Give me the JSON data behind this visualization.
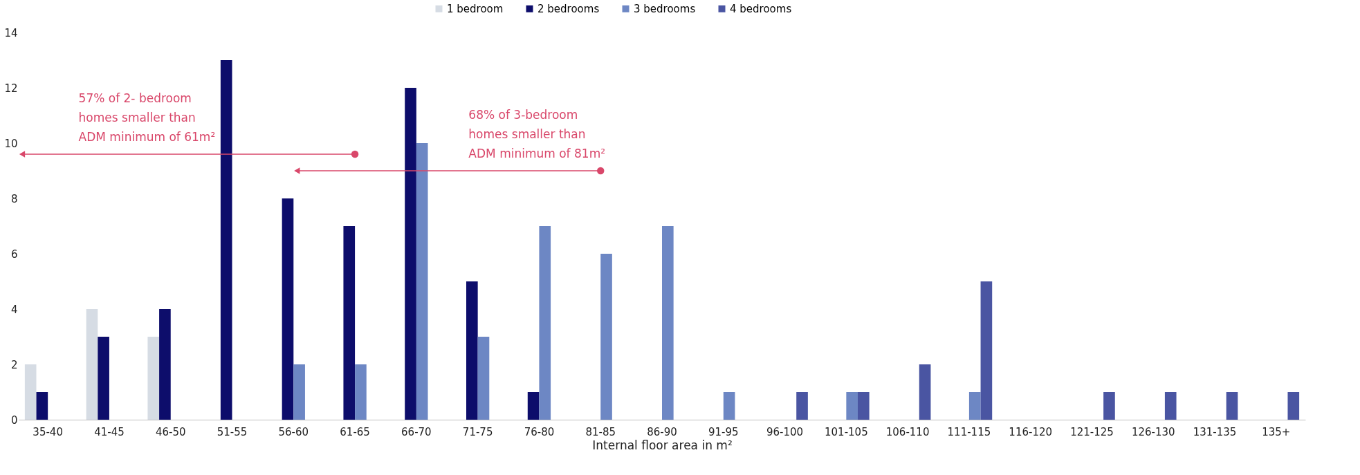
{
  "chart_data": {
    "type": "bar",
    "xlabel": "Internal floor area in m²",
    "categories": [
      "35-40",
      "41-45",
      "46-50",
      "51-55",
      "56-60",
      "61-65",
      "66-70",
      "71-75",
      "76-80",
      "81-85",
      "86-90",
      "91-95",
      "96-100",
      "101-105",
      "106-110",
      "111-115",
      "116-120",
      "121-125",
      "126-130",
      "131-135",
      "135+"
    ],
    "series": [
      {
        "name": "1 bedroom",
        "color": "#d6dce4",
        "values": [
          2,
          4,
          3,
          null,
          null,
          null,
          null,
          null,
          null,
          null,
          null,
          null,
          null,
          null,
          null,
          null,
          null,
          null,
          null,
          null,
          null
        ]
      },
      {
        "name": "2 bedrooms",
        "color": "#0d0d6b",
        "values": [
          1,
          3,
          4,
          13,
          8,
          7,
          12,
          5,
          1,
          null,
          null,
          null,
          null,
          null,
          null,
          null,
          null,
          null,
          null,
          null,
          null
        ]
      },
      {
        "name": "3 bedrooms",
        "color": "#6d87c4",
        "values": [
          null,
          null,
          null,
          null,
          2,
          2,
          10,
          3,
          7,
          6,
          7,
          1,
          null,
          1,
          null,
          1,
          null,
          null,
          null,
          null,
          null
        ]
      },
      {
        "name": "4 bedrooms",
        "color": "#4a55a2",
        "values": [
          null,
          null,
          null,
          null,
          null,
          null,
          null,
          null,
          null,
          null,
          null,
          null,
          1,
          1,
          2,
          5,
          null,
          1,
          1,
          1,
          1
        ]
      }
    ],
    "ylim": [
      0,
      14
    ],
    "yticks": [
      0,
      2,
      4,
      6,
      8,
      10,
      12,
      14
    ],
    "grid": false,
    "legend": "top",
    "annotations": [
      "57% of 2- bedroom\nhomes smaller than\nADM minimum of 61m²",
      "68% of 3-bedroom\nhomes smaller than\nADM minimum of 81m²"
    ]
  }
}
